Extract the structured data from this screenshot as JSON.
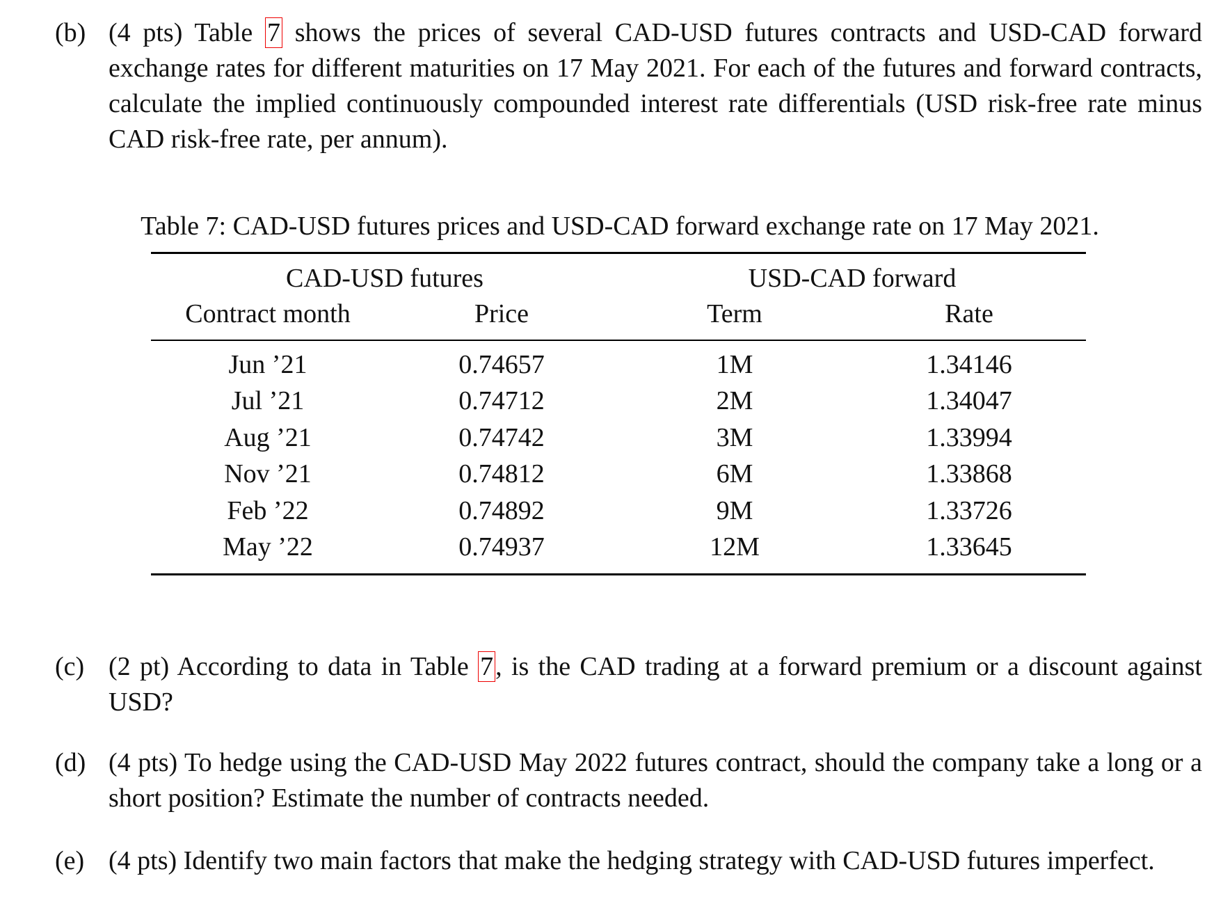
{
  "questions": [
    {
      "label": "(b)",
      "before": "(4 pts) Table",
      "ref": "7",
      "after": "shows the prices of several CAD-USD futures contracts and USD-CAD forward exchange rates for different maturities on 17 May 2021. For each of the futures and forward contracts, calculate the implied continuously compounded interest rate differentials (USD risk-free rate minus CAD risk-free rate, per annum)."
    },
    {
      "label": "(c)",
      "before": "(2 pt) According to data in Table",
      "ref": "7",
      "after": ", is the CAD trading at a forward premium or a discount against USD?"
    },
    {
      "label": "(d)",
      "text": "(4 pts) To hedge using the CAD-USD May 2022 futures contract, should the company take a long or a short position? Estimate the number of contracts needed."
    },
    {
      "label": "(e)",
      "text": "(4 pts) Identify two main factors that make the hedging strategy with CAD-USD futures imperfect."
    }
  ],
  "table": {
    "caption": "Table 7: CAD-USD futures prices and USD-CAD forward exchange rate on 17 May 2021.",
    "groups": [
      "CAD-USD futures",
      "USD-CAD forward"
    ],
    "columns": [
      "Contract month",
      "Price",
      "Term",
      "Rate"
    ],
    "rows": [
      [
        "Jun ’21",
        "0.74657",
        "1M",
        "1.34146"
      ],
      [
        "Jul ’21",
        "0.74712",
        "2M",
        "1.34047"
      ],
      [
        "Aug ’21",
        "0.74742",
        "3M",
        "1.33994"
      ],
      [
        "Nov ’21",
        "0.74812",
        "6M",
        "1.33868"
      ],
      [
        "Feb ’22",
        "0.74892",
        "9M",
        "1.33726"
      ],
      [
        "May ’22",
        "0.74937",
        "12M",
        "1.33645"
      ]
    ]
  }
}
